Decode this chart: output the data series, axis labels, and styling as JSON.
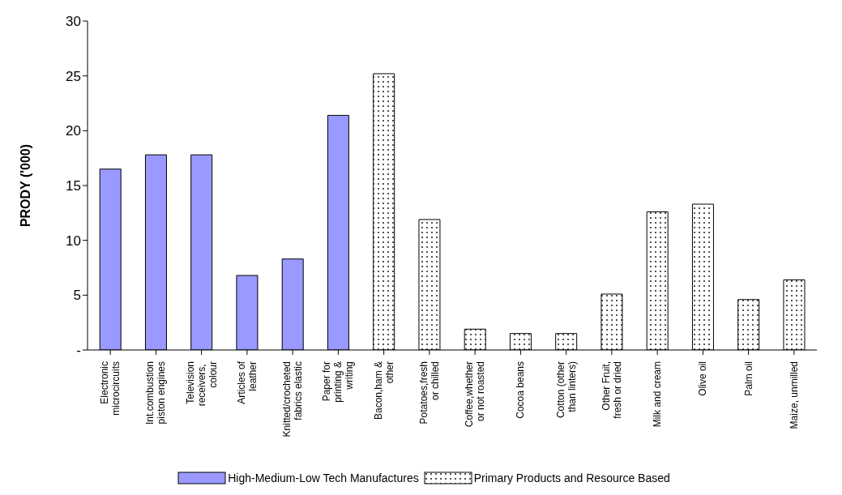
{
  "chart_data": {
    "type": "bar",
    "ylabel": "PRODY ('000)",
    "categories": [
      "Electronic microcircuits",
      "Int.combustion piston engines",
      "Television receivers,  colour",
      "Articles of leather",
      "Knitted/crocheted fabrics elastic",
      "Paper for printing & writing",
      "Bacon,ham & other",
      "Potatoes,fresh or chilled",
      "Coffee,whether or not roasted",
      "Cocoa beans",
      "Cotton (other than linters)",
      "Other Fruit, fresh or dried",
      "Milk and cream",
      "Olive oil",
      "Palm oil",
      "Maize, unmilled"
    ],
    "series": [
      {
        "name": "High-Medium-Low Tech Manufactures",
        "color": "#9999ff",
        "values": [
          16.5,
          17.8,
          17.8,
          6.8,
          8.3,
          21.4,
          null,
          null,
          null,
          null,
          null,
          null,
          null,
          null,
          null,
          null
        ]
      },
      {
        "name": "Primary Products and Resource Based",
        "color": "#000000",
        "values": [
          null,
          null,
          null,
          null,
          null,
          null,
          25.2,
          11.9,
          1.9,
          1.5,
          1.5,
          5.1,
          12.6,
          13.3,
          4.6,
          6.4
        ]
      }
    ],
    "ylim": [
      0,
      30
    ],
    "yticks": [
      {
        "value": 0,
        "label": "-"
      },
      5,
      10,
      15,
      20,
      25,
      30
    ],
    "grid": false,
    "legend": "bottom"
  }
}
